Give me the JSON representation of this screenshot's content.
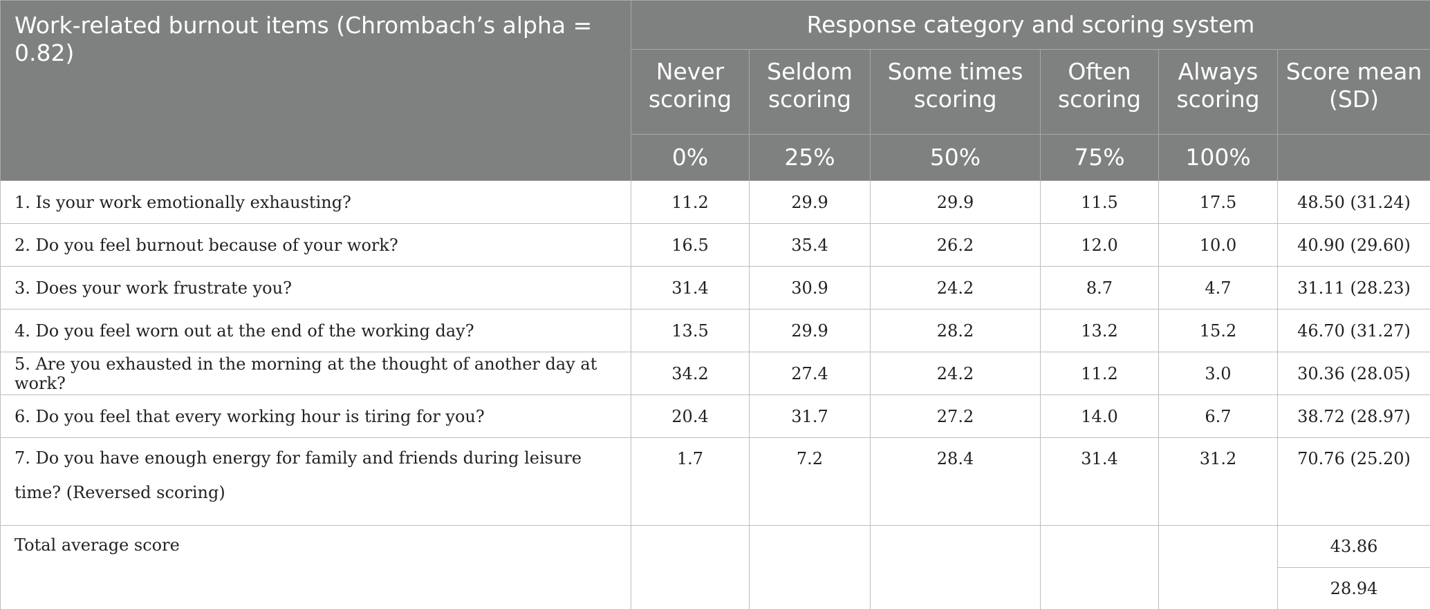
{
  "header": {
    "title": "Work-related burnout items (Chrombach’s alpha = 0.82)",
    "group_label": "Response category and scoring system",
    "columns": [
      {
        "label": "Never scoring",
        "pct": "0%"
      },
      {
        "label": "Seldom scoring",
        "pct": "25%"
      },
      {
        "label": "Some times scoring",
        "pct": "50%"
      },
      {
        "label": "Often scoring",
        "pct": "75%"
      },
      {
        "label": "Always scoring",
        "pct": "100%"
      }
    ],
    "score_label": "Score mean (SD)"
  },
  "rows": [
    {
      "item": "1. Is your work emotionally exhausting?",
      "values": [
        "11.2",
        "29.9",
        "29.9",
        "11.5",
        "17.5"
      ],
      "score": "48.50 (31.24)"
    },
    {
      "item": "2. Do you feel burnout because of your work?",
      "values": [
        "16.5",
        "35.4",
        "26.2",
        "12.0",
        "10.0"
      ],
      "score": "40.90 (29.60)"
    },
    {
      "item": "3. Does your work frustrate you?",
      "values": [
        "31.4",
        "30.9",
        "24.2",
        "8.7",
        "4.7"
      ],
      "score": "31.11 (28.23)"
    },
    {
      "item": "4. Do you feel worn out at the end of the working day?",
      "values": [
        "13.5",
        "29.9",
        "28.2",
        "13.2",
        "15.2"
      ],
      "score": "46.70 (31.27)"
    },
    {
      "item": "5. Are you exhausted in the morning at the thought of another day at work?",
      "values": [
        "34.2",
        "27.4",
        "24.2",
        "11.2",
        "3.0"
      ],
      "score": "30.36 (28.05)"
    },
    {
      "item": "6. Do you feel that every working hour is tiring for you?",
      "values": [
        "20.4",
        "31.7",
        "27.2",
        "14.0",
        "6.7"
      ],
      "score": "38.72 (28.97)"
    },
    {
      "item": "7. Do you have enough energy for family and friends during leisure time? (Reversed scoring)",
      "values": [
        "1.7",
        "7.2",
        "28.4",
        "31.4",
        "31.2"
      ],
      "score": "70.76 (25.20)"
    }
  ],
  "total": {
    "label": "Total average score",
    "mean": "43.86",
    "sd": "28.94"
  }
}
